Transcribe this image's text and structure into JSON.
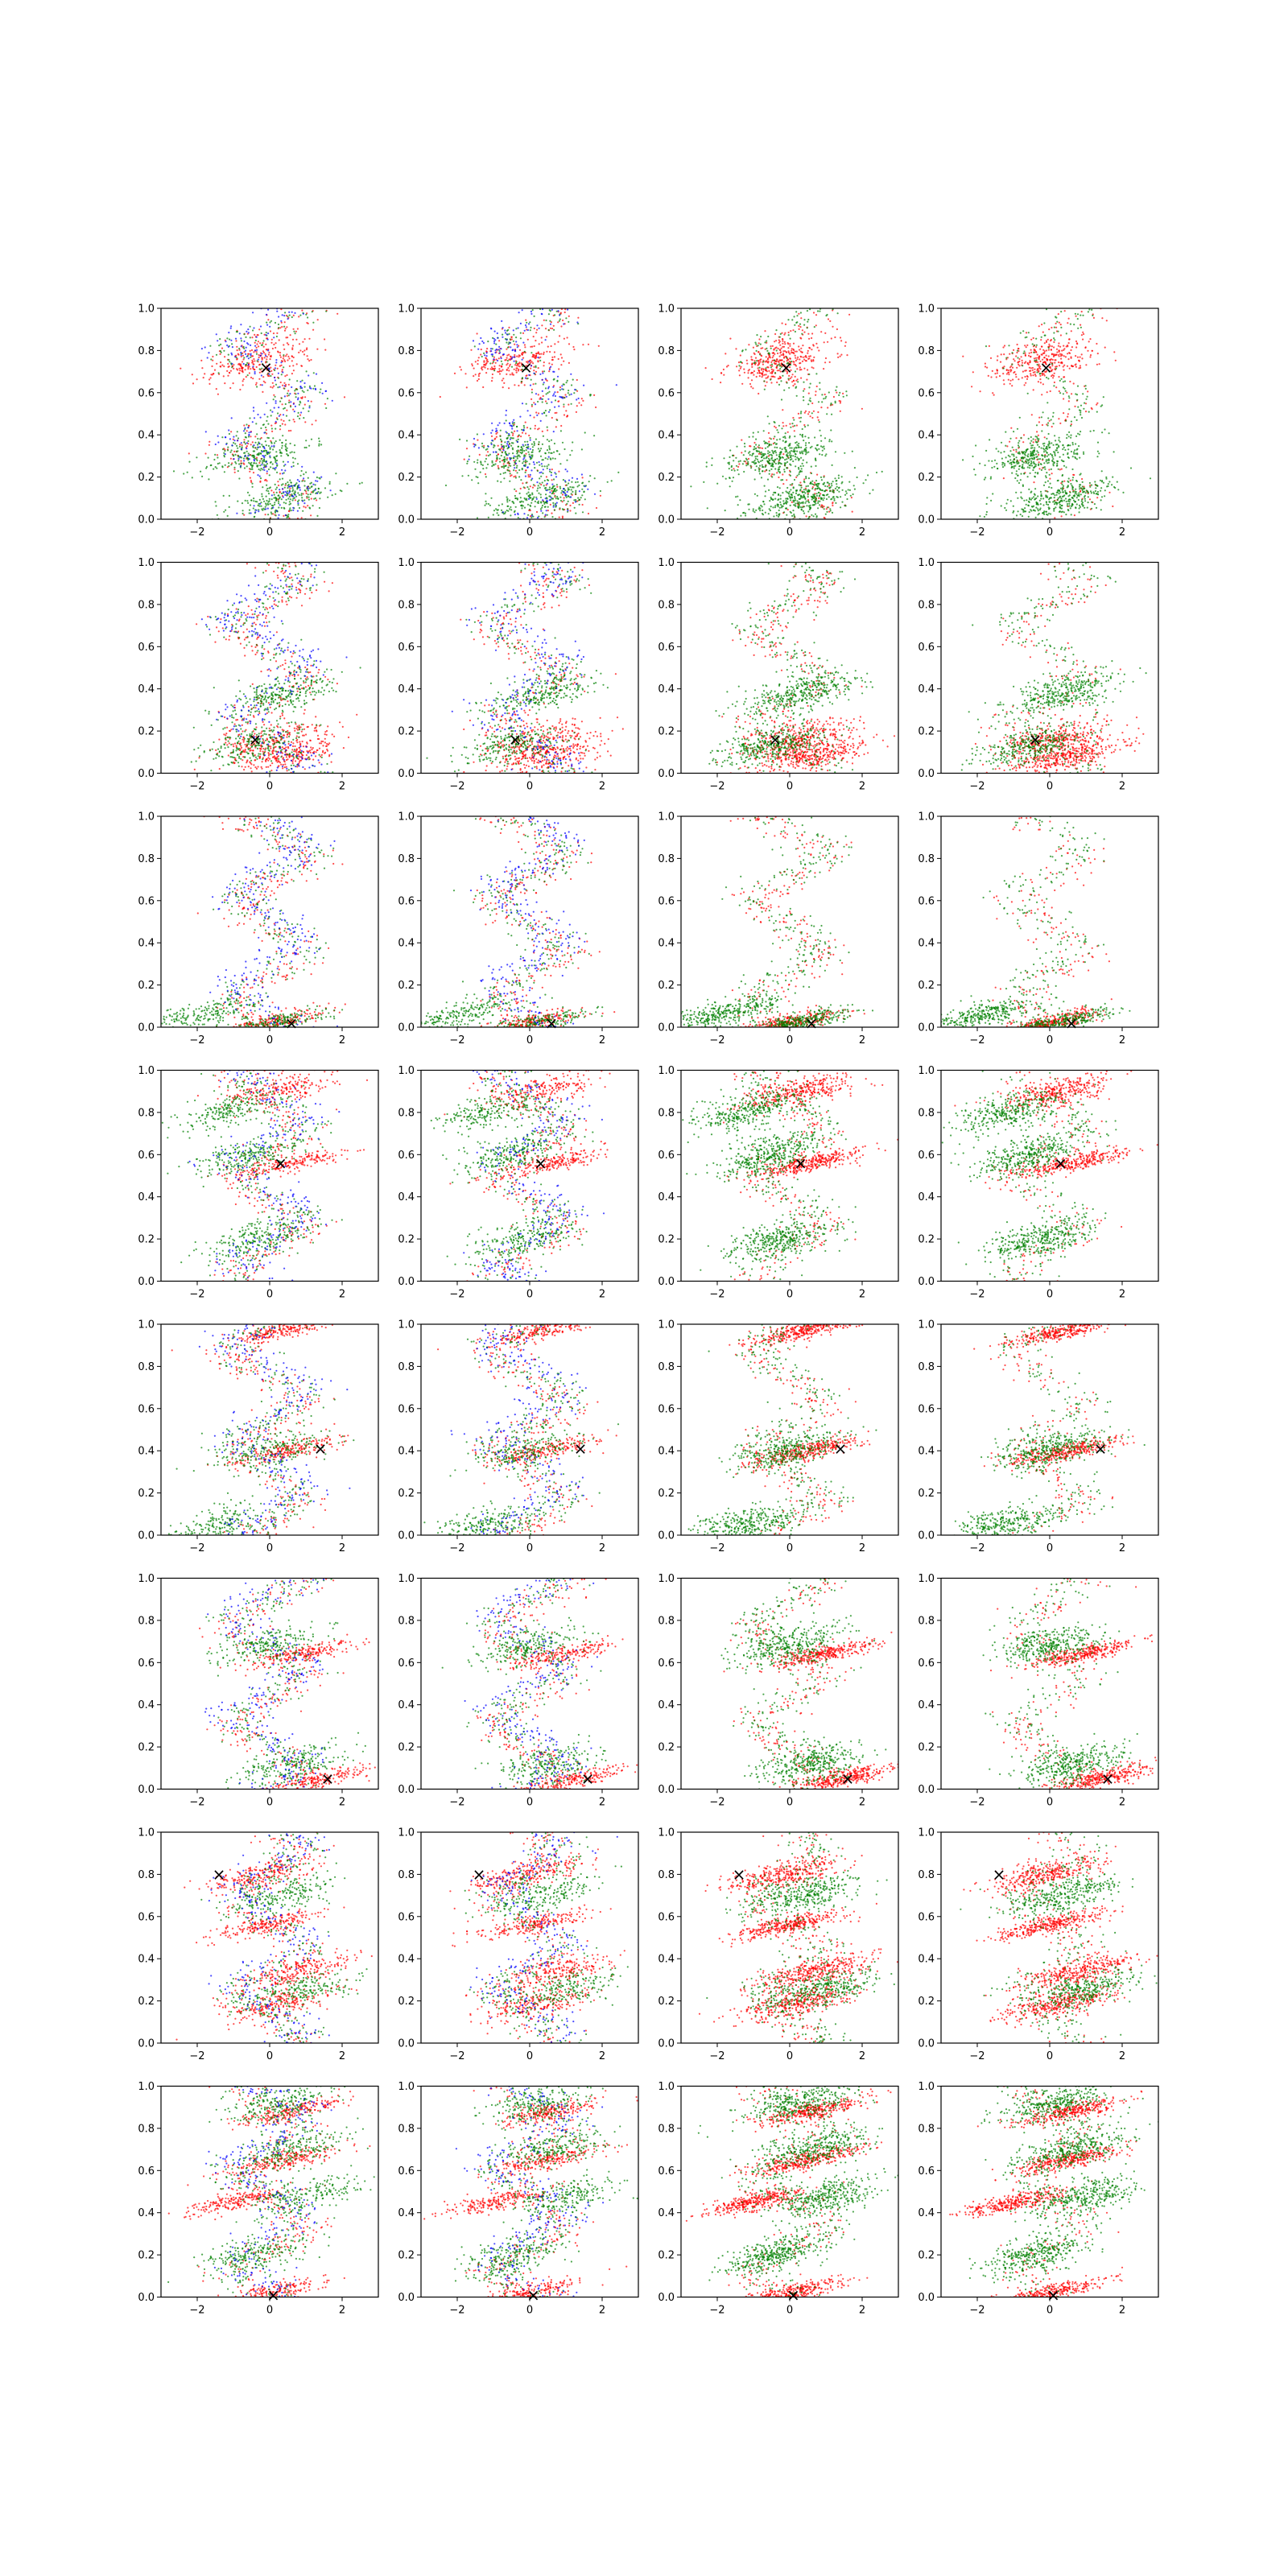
{
  "figure": {
    "description": "8x4 grid of scatter plots",
    "marker_label": "×"
  },
  "colors": {
    "red": "#ff0000",
    "green": "#008000",
    "blue": "#0000ff",
    "marker": "#000000",
    "axis": "#000000"
  },
  "chart_data": {
    "type": "scatter",
    "grid": false,
    "title": "",
    "xlabel": "",
    "ylabel": "",
    "xlim": [
      -3,
      3
    ],
    "ylim": [
      0,
      1
    ],
    "xticks": [
      -2,
      0,
      2
    ],
    "xtick_labels": [
      "−2",
      "0",
      "2"
    ],
    "yticks": [
      0.0,
      0.2,
      0.4,
      0.6,
      0.8,
      1.0
    ],
    "ytick_labels": [
      "0.0",
      "0.2",
      "0.4",
      "0.6",
      "0.8",
      "1.0"
    ],
    "column_series": [
      [
        "red",
        "green",
        "blue"
      ],
      [
        "red",
        "green",
        "blue"
      ],
      [
        "red",
        "green"
      ],
      [
        "red",
        "green"
      ]
    ],
    "rows": [
      {
        "marker": [
          -0.1,
          0.72
        ],
        "bands": {
          "red": [
            [
              0.75,
              -0.25,
              0.05
            ]
          ],
          "green": [
            [
              0.1,
              0.3,
              0.04
            ],
            [
              0.3,
              -0.3,
              0.04
            ]
          ]
        }
      },
      {
        "marker": [
          -0.4,
          0.16
        ],
        "bands": {
          "red": [
            [
              0.16,
              0.2,
              0.04
            ],
            [
              0.08,
              0.5,
              0.03
            ]
          ],
          "green": [
            [
              0.13,
              -0.5,
              0.04
            ],
            [
              0.38,
              0.4,
              0.04
            ]
          ]
        }
      },
      {
        "marker": [
          0.6,
          0.02
        ],
        "bands": {
          "red": [
            [
              0.02,
              0.0,
              0.02
            ]
          ],
          "green": [
            [
              0.06,
              -1.9,
              0.03
            ],
            [
              0.02,
              0.2,
              0.02
            ]
          ]
        }
      },
      {
        "marker": [
          0.3,
          0.56
        ],
        "bands": {
          "red": [
            [
              0.56,
              0.6,
              0.02
            ],
            [
              0.9,
              0.3,
              0.03
            ]
          ],
          "green": [
            [
              0.6,
              -0.6,
              0.04
            ],
            [
              0.2,
              -0.3,
              0.04
            ],
            [
              0.8,
              -1.2,
              0.04
            ]
          ]
        }
      },
      {
        "marker": [
          1.4,
          0.41
        ],
        "bands": {
          "red": [
            [
              0.4,
              0.5,
              0.02
            ],
            [
              0.97,
              0.4,
              0.02
            ]
          ],
          "green": [
            [
              0.4,
              0.0,
              0.04
            ],
            [
              0.05,
              -1.3,
              0.04
            ]
          ]
        }
      },
      {
        "marker": [
          1.6,
          0.05
        ],
        "bands": {
          "red": [
            [
              0.05,
              1.4,
              0.02
            ],
            [
              0.64,
              0.9,
              0.02
            ]
          ],
          "green": [
            [
              0.12,
              0.6,
              0.04
            ],
            [
              0.68,
              0.0,
              0.04
            ]
          ]
        }
      },
      {
        "marker": [
          -1.4,
          0.8
        ],
        "bands": {
          "red": [
            [
              0.8,
              -0.2,
              0.03
            ],
            [
              0.34,
              0.8,
              0.03
            ],
            [
              0.19,
              0.3,
              0.03
            ],
            [
              0.56,
              0.0,
              0.02
            ]
          ],
          "green": [
            [
              0.7,
              0.4,
              0.04
            ],
            [
              0.25,
              0.9,
              0.04
            ]
          ]
        }
      },
      {
        "marker": [
          0.1,
          0.01
        ],
        "bands": {
          "red": [
            [
              0.45,
              -1.0,
              0.02
            ],
            [
              0.02,
              0.0,
              0.02
            ],
            [
              0.88,
              0.6,
              0.02
            ],
            [
              0.65,
              0.5,
              0.02
            ]
          ],
          "green": [
            [
              0.48,
              1.0,
              0.04
            ],
            [
              0.92,
              0.2,
              0.04
            ],
            [
              0.7,
              0.7,
              0.04
            ],
            [
              0.2,
              -0.4,
              0.04
            ]
          ]
        }
      }
    ]
  }
}
